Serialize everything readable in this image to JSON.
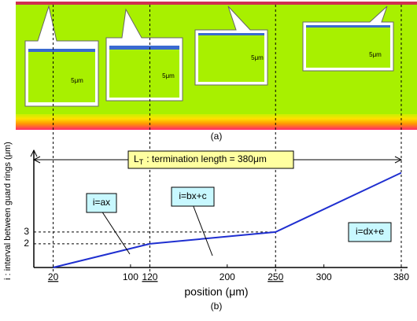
{
  "panel_a": {
    "scale_labels": [
      "5μm",
      "5μm",
      "5μm",
      "5μm"
    ],
    "caption": "(a)"
  },
  "chart_data": {
    "type": "line",
    "x": [
      20,
      120,
      250,
      380
    ],
    "series": [
      {
        "color": "#1f2fd0",
        "values": [
          0,
          2,
          3,
          8
        ]
      }
    ],
    "xlim": [
      0,
      380
    ],
    "ylim": [
      0,
      9.9
    ],
    "xticks": [
      20,
      100,
      120,
      200,
      250,
      300,
      380
    ],
    "yticks": [
      2,
      3
    ],
    "underlined_xticks": [
      20,
      120,
      250
    ],
    "xlabel": "position (μm)",
    "ylabel": "i : interval between guard rings (μm)",
    "caption": "(b)",
    "span_label": {
      "main": "L",
      "sub": "T",
      "rest": ": termination length = 380μm"
    },
    "annotations": [
      {
        "text": "i=ax",
        "x": 70
      },
      {
        "text": "i=bx+c",
        "x": 185
      },
      {
        "text": "i=dx+e",
        "x": 315
      }
    ]
  }
}
